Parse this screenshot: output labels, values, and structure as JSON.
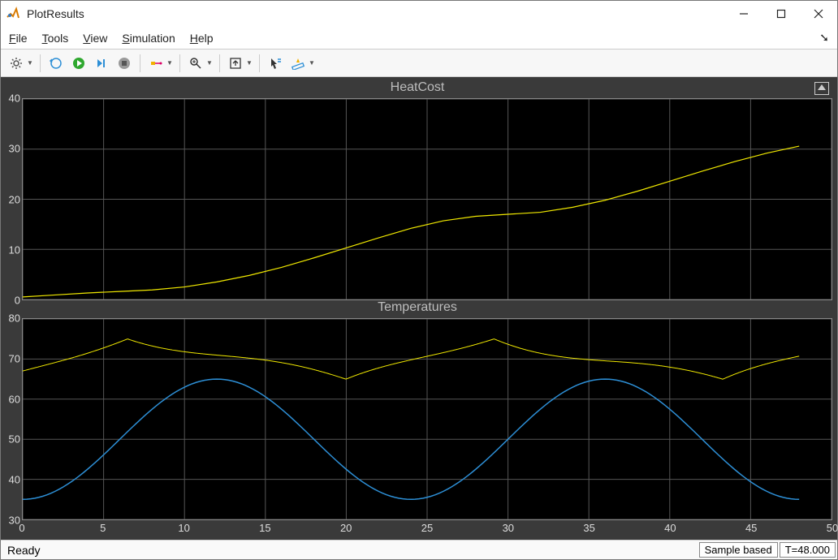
{
  "window": {
    "title": "PlotResults",
    "controls": {
      "minimize": "window-minimize",
      "maximize": "window-maximize",
      "close": "window-close"
    }
  },
  "menubar": {
    "items": [
      {
        "label": "File",
        "accel": 0
      },
      {
        "label": "Tools",
        "accel": 0
      },
      {
        "label": "View",
        "accel": 0
      },
      {
        "label": "Simulation",
        "accel": 0
      },
      {
        "label": "Help",
        "accel": 0
      }
    ]
  },
  "toolbar": {
    "buttons": [
      {
        "name": "config-gear-icon",
        "dropdown": true
      },
      {
        "sep": true
      },
      {
        "name": "rewind-icon"
      },
      {
        "name": "run-icon"
      },
      {
        "name": "step-forward-icon"
      },
      {
        "name": "stop-icon"
      },
      {
        "sep": true
      },
      {
        "name": "highlight-signal-icon",
        "dropdown": true
      },
      {
        "sep": true
      },
      {
        "name": "zoom-icon",
        "dropdown": true
      },
      {
        "sep": true
      },
      {
        "name": "autoscale-icon",
        "dropdown": true
      },
      {
        "sep": true
      },
      {
        "name": "cursor-measure-icon"
      },
      {
        "name": "ruler-icon",
        "dropdown": true
      }
    ]
  },
  "scope": {
    "background_color": "#3a3a3a",
    "axes_background": "#000000",
    "grid_color": "#565656",
    "axis_text_color": "#dddddd",
    "title_color": "#bdbdbd",
    "xlim": [
      0,
      50
    ],
    "xticks": [
      0,
      5,
      10,
      15,
      20,
      25,
      30,
      35,
      40,
      45,
      50
    ],
    "subplots": [
      {
        "title": "HeatCost",
        "ylim": [
          0,
          40
        ],
        "yticks": [
          0,
          10,
          20,
          30,
          40
        ],
        "series": [
          {
            "name": "heat-cost",
            "color": "#f0e800",
            "linewidth": 1.2,
            "x": [
              0,
              2,
              4,
              6,
              8,
              10,
              12,
              14,
              16,
              18,
              20,
              22,
              24,
              26,
              28,
              30,
              32,
              34,
              36,
              38,
              40,
              42,
              44,
              46,
              48
            ],
            "y": [
              0.5,
              0.9,
              1.3,
              1.6,
              1.9,
              2.5,
              3.5,
              4.8,
              6.4,
              8.3,
              10.3,
              12.3,
              14.2,
              15.7,
              16.6,
              17.0,
              17.4,
              18.4,
              19.8,
              21.6,
              23.6,
              25.6,
              27.5,
              29.2,
              30.6
            ]
          }
        ]
      },
      {
        "title": "Temperatures",
        "ylim": [
          30,
          80
        ],
        "yticks": [
          30,
          40,
          50,
          60,
          70,
          80
        ],
        "series": [
          {
            "name": "outdoor-temp",
            "color": "#2d8fd6",
            "linewidth": 1.5,
            "type": "sine",
            "amp": 15,
            "mean": 50,
            "period": 24,
            "phase_x": 6,
            "x_end": 48
          },
          {
            "name": "indoor-temp",
            "color": "#f0e800",
            "linewidth": 1.0,
            "type": "thermostat",
            "low": 65,
            "high": 75,
            "outdoor_ref": "outdoor-temp",
            "x_end": 48
          }
        ]
      }
    ]
  },
  "statusbar": {
    "status": "Ready",
    "mode": "Sample based",
    "time": "T=48.000"
  }
}
